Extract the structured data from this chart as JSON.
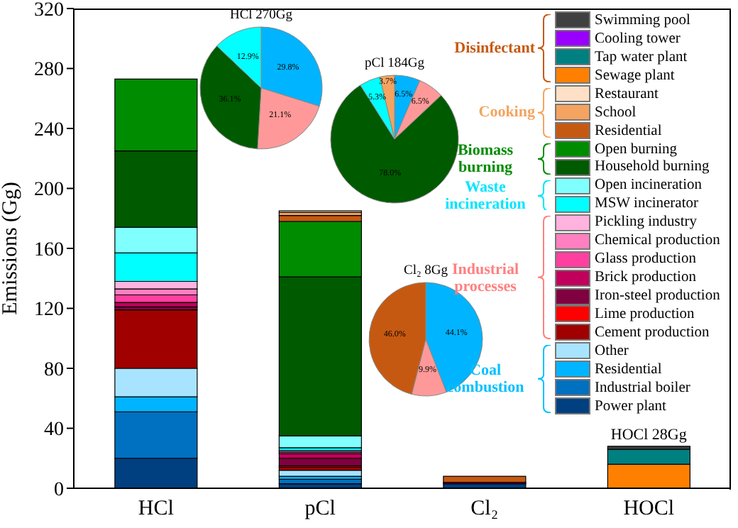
{
  "chart_data": [
    {
      "type": "bar",
      "stacked": true,
      "ylabel": "Emissions (Gg)",
      "categories": [
        "HCl",
        "pCl",
        "Cl₂",
        "HOCl"
      ],
      "ylim": [
        0,
        320
      ],
      "yticks": [
        0,
        40,
        80,
        120,
        160,
        200,
        240,
        280,
        320
      ],
      "grid": false,
      "legend": "top right",
      "series": [
        {
          "name": "Power plant",
          "color": "#004080",
          "values": [
            20,
            3,
            3,
            0
          ]
        },
        {
          "name": "Industrial boiler",
          "color": "#0070c0",
          "values": [
            31,
            3,
            0,
            0
          ]
        },
        {
          "name": "Residential",
          "color": "#00b4ff",
          "values": [
            10,
            2,
            0,
            0
          ]
        },
        {
          "name": "Other",
          "color": "#a8e4ff",
          "values": [
            19,
            4,
            0,
            0
          ]
        },
        {
          "name": "Cement production",
          "color": "#a00000",
          "values": [
            39,
            2,
            0,
            0
          ]
        },
        {
          "name": "Lime production",
          "color": "#ff0000",
          "values": [
            0,
            1,
            0,
            0
          ]
        },
        {
          "name": "Iron-steel production",
          "color": "#800040",
          "values": [
            2,
            5,
            0,
            0
          ]
        },
        {
          "name": "Brick production",
          "color": "#c0005a",
          "values": [
            3,
            3,
            1,
            0
          ]
        },
        {
          "name": "Glass production",
          "color": "#ff40a0",
          "values": [
            5,
            1,
            0,
            0
          ]
        },
        {
          "name": "Chemical production",
          "color": "#ff80c0",
          "values": [
            4,
            1,
            0,
            0
          ]
        },
        {
          "name": "Pickling industry",
          "color": "#ffb3de",
          "values": [
            5,
            0,
            0,
            0
          ]
        },
        {
          "name": "MSW incinerator",
          "color": "#00ffff",
          "values": [
            19,
            2,
            0,
            0
          ]
        },
        {
          "name": "Open incineration",
          "color": "#80ffff",
          "values": [
            17,
            8,
            0,
            0
          ]
        },
        {
          "name": "Household burning",
          "color": "#005a00",
          "values": [
            51,
            106,
            0,
            0
          ]
        },
        {
          "name": "Open burning",
          "color": "#008c00",
          "values": [
            48,
            37,
            0,
            0
          ]
        },
        {
          "name": "Residential",
          "color": "#c65911",
          "values": [
            0,
            4,
            4,
            0
          ]
        },
        {
          "name": "School",
          "color": "#f4a460",
          "values": [
            0,
            2,
            0,
            0
          ]
        },
        {
          "name": "Restaurant",
          "color": "#fde0c5",
          "values": [
            0,
            1,
            0,
            0
          ]
        },
        {
          "name": "Sewage plant",
          "color": "#ff8000",
          "values": [
            0,
            0,
            0,
            16
          ]
        },
        {
          "name": "Tap water plant",
          "color": "#008080",
          "values": [
            0,
            0,
            0,
            10
          ]
        },
        {
          "name": "Cooling tower",
          "color": "#9900ff",
          "values": [
            0,
            0,
            0,
            0
          ]
        },
        {
          "name": "Swimming pool",
          "color": "#404040",
          "values": [
            0,
            0,
            0,
            2
          ]
        }
      ],
      "annotations": [
        "Disinfectant",
        "Cooking",
        "Biomass burning",
        "Waste incineration",
        "Industrial processes",
        "Coal combustion",
        {
          "text": "HOCl 28Gg",
          "x": "HOCl",
          "y": 28
        }
      ]
    },
    {
      "type": "pie",
      "title": "HCl 270Gg",
      "categories": [
        null,
        null,
        null,
        null
      ],
      "values": [
        29.8,
        21.1,
        36.1,
        12.9
      ],
      "colors": [
        "#00b4ff",
        "#ff9999",
        "#005a00",
        "#00ffff"
      ],
      "value_labels": [
        "29.8%",
        "21.1%",
        "36.1%",
        "12.9%"
      ]
    },
    {
      "type": "pie",
      "title": "pCl 184Gg",
      "categories": [
        null,
        null,
        null,
        null,
        null
      ],
      "values": [
        6.5,
        6.5,
        78.0,
        5.3,
        3.7
      ],
      "colors": [
        "#00b4ff",
        "#ff9999",
        "#005a00",
        "#00ffff",
        "#f4a460"
      ],
      "value_labels": [
        "6.5%",
        "6.5%",
        "78.0%",
        "5.3%",
        "3.7%"
      ]
    },
    {
      "type": "pie",
      "title": "Cl₂ 8Gg",
      "categories": [
        null,
        null,
        null
      ],
      "values": [
        44.1,
        9.9,
        46.0
      ],
      "colors": [
        "#00b4ff",
        "#ff9999",
        "#c65911"
      ],
      "value_labels": [
        "44.1%",
        "9.9%",
        "46.0%"
      ]
    }
  ]
}
